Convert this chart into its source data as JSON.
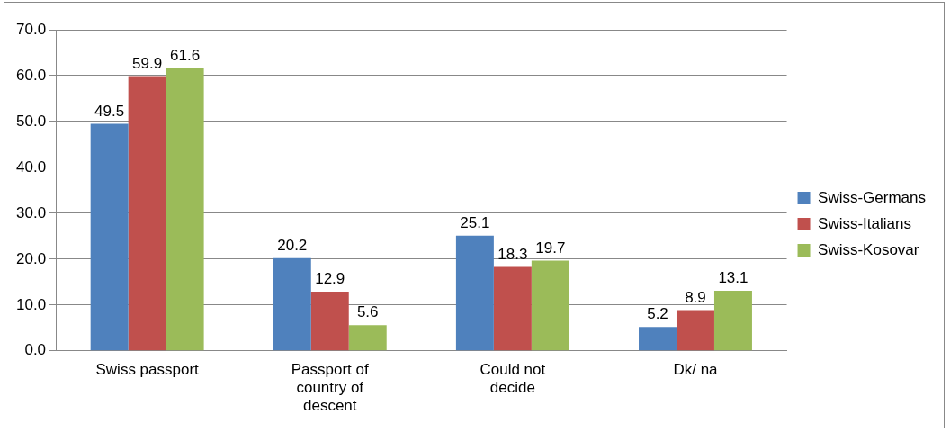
{
  "chart_data": {
    "type": "bar",
    "categories": [
      "Swiss passport",
      "Passport of country of descent",
      "Could not decide",
      "Dk/ na"
    ],
    "series": [
      {
        "name": "Swiss-Germans",
        "color": "#4f81bd",
        "values": [
          49.5,
          20.2,
          25.1,
          5.2
        ]
      },
      {
        "name": "Swiss-Italians",
        "color": "#c0504d",
        "values": [
          59.9,
          12.9,
          18.3,
          8.9
        ]
      },
      {
        "name": "Swiss-Kosovar",
        "color": "#9bbb59",
        "values": [
          61.6,
          5.6,
          19.7,
          13.1
        ]
      }
    ],
    "ylim": [
      0,
      70
    ],
    "yticks": [
      {
        "value": 0,
        "label": "0.0"
      },
      {
        "value": 10,
        "label": "10.0"
      },
      {
        "value": 20,
        "label": "20.0"
      },
      {
        "value": 30,
        "label": "30.0"
      },
      {
        "value": 40,
        "label": "40.0"
      },
      {
        "value": 50,
        "label": "50.0"
      },
      {
        "value": 60,
        "label": "60.0"
      },
      {
        "value": 70,
        "label": "70.0"
      }
    ],
    "grid": "y",
    "legend": "right",
    "data_labels": true
  }
}
